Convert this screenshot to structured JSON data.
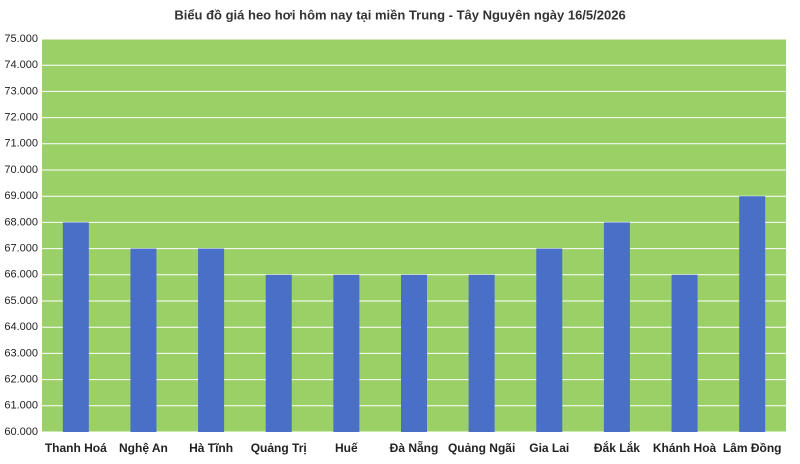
{
  "chart_data": {
    "type": "bar",
    "title": "Biểu đồ giá heo hơi hôm nay tại miền Trung - Tây Nguyên ngày 16/5/2026",
    "categories": [
      "Thanh Hoá",
      "Nghệ An",
      "Hà Tĩnh",
      "Quảng Trị",
      "Huế",
      "Đà Nẵng",
      "Quảng Ngãi",
      "Gia Lai",
      "Đắk Lắk",
      "Khánh Hoà",
      "Lâm Đồng"
    ],
    "values": [
      68000,
      67000,
      67000,
      66000,
      66000,
      66000,
      66000,
      67000,
      68000,
      66000,
      69000
    ],
    "color": "#4a6fc6",
    "background": "#9bd067",
    "ylim": [
      60000,
      75000
    ],
    "yticks": [
      {
        "value": 60000,
        "label": "60.000"
      },
      {
        "value": 61000,
        "label": "61.000"
      },
      {
        "value": 62000,
        "label": "62.000"
      },
      {
        "value": 63000,
        "label": "63.000"
      },
      {
        "value": 64000,
        "label": "64.000"
      },
      {
        "value": 65000,
        "label": "65.000"
      },
      {
        "value": 66000,
        "label": "66.000"
      },
      {
        "value": 67000,
        "label": "67.000"
      },
      {
        "value": 68000,
        "label": "68.000"
      },
      {
        "value": 69000,
        "label": "69.000"
      },
      {
        "value": 70000,
        "label": "70.000"
      },
      {
        "value": 71000,
        "label": "71.000"
      },
      {
        "value": 72000,
        "label": "72.000"
      },
      {
        "value": 73000,
        "label": "73.000"
      },
      {
        "value": 74000,
        "label": "74.000"
      },
      {
        "value": 75000,
        "label": "75.000"
      }
    ],
    "grid": true
  }
}
